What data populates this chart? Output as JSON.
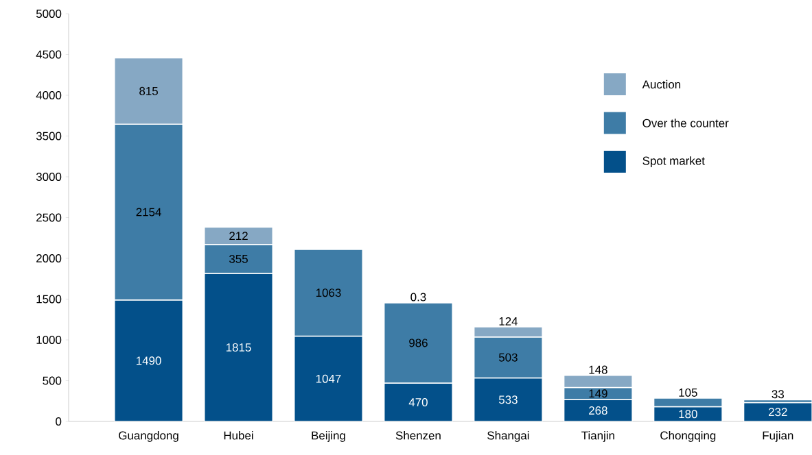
{
  "chart_data": {
    "type": "bar",
    "stacked": true,
    "categories": [
      "Guangdong",
      "Hubei",
      "Beijing",
      "Shenzen",
      "Shangai",
      "Tianjin",
      "Chongqing",
      "Fujian"
    ],
    "series": [
      {
        "name": "Spot market",
        "color": "#03508a",
        "values": [
          1490,
          1815,
          1047,
          470,
          533,
          268,
          180,
          232
        ]
      },
      {
        "name": "Over the counter",
        "color": "#3e7ca6",
        "values": [
          2154,
          355,
          1063,
          986,
          503,
          149,
          105,
          33
        ]
      },
      {
        "name": "Auction",
        "color": "#86a8c4",
        "values": [
          815,
          212,
          null,
          0.3,
          124,
          148,
          null,
          null
        ]
      }
    ],
    "ylim": [
      0,
      5000
    ],
    "yticks": [
      0,
      500,
      1000,
      1500,
      2000,
      2500,
      3000,
      3500,
      4000,
      4500,
      5000
    ],
    "data_labels": true,
    "legend": "top right",
    "grid": false
  }
}
